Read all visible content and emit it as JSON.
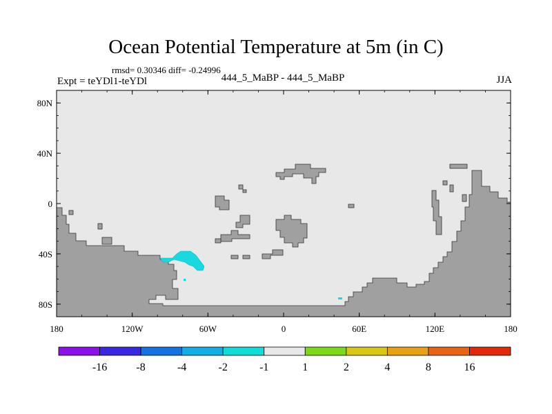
{
  "title": "Ocean Potential Temperature at 5m (in C)",
  "stats": "rmsd= 0.30346 diff= -0.24996",
  "expt": "Expt = teYDl1-teYDl",
  "center_label": "444_5_MaBP - 444_5_MaBP",
  "season": "JJA",
  "map": {
    "lon_range": [
      -180,
      180
    ],
    "lat_range": [
      -90,
      90
    ],
    "y_ticks": [
      {
        "label": "80N",
        "lat": 80
      },
      {
        "label": "40N",
        "lat": 40
      },
      {
        "label": "0",
        "lat": 0
      },
      {
        "label": "40S",
        "lat": -40
      },
      {
        "label": "80S",
        "lat": -80
      }
    ],
    "x_ticks": [
      {
        "label": "180",
        "lon": -180
      },
      {
        "label": "120W",
        "lon": -120
      },
      {
        "label": "60W",
        "lon": -60
      },
      {
        "label": "0",
        "lon": 0
      },
      {
        "label": "60E",
        "lon": 60
      },
      {
        "label": "120E",
        "lon": 120
      },
      {
        "label": "180",
        "lon": 180
      }
    ],
    "ocean_color": "#e8e8e8",
    "land_color": "#a0a0a0",
    "anomaly_color": "#19d9e0"
  },
  "colorbar": {
    "colors": [
      "#8a12e8",
      "#3a28e0",
      "#1473e0",
      "#12aee6",
      "#12dcd8",
      "#e8e8e8",
      "#7ed81a",
      "#d8c814",
      "#e8a014",
      "#e86414",
      "#e02a0a"
    ],
    "labels": [
      "-16",
      "-8",
      "-4",
      "-2",
      "-1",
      "1",
      "2",
      "4",
      "8",
      "16"
    ]
  }
}
